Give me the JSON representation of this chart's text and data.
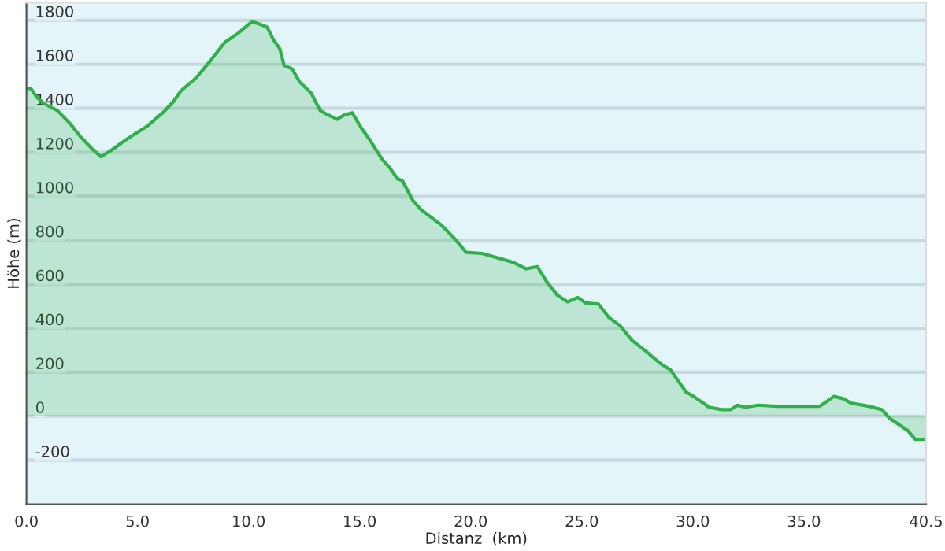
{
  "chart_data": {
    "type": "area",
    "xlabel": "Distanz  (km)",
    "ylabel": "Höhe (m)",
    "xlim": [
      0,
      40.5
    ],
    "ylim": [
      -400,
      1880
    ],
    "xticks": [
      {
        "value": 0,
        "label": "0.0"
      },
      {
        "value": 5,
        "label": "5.0"
      },
      {
        "value": 10,
        "label": "10.0"
      },
      {
        "value": 15,
        "label": "15.0"
      },
      {
        "value": 20,
        "label": "20.0"
      },
      {
        "value": 25,
        "label": "25.0"
      },
      {
        "value": 30,
        "label": "30.0"
      },
      {
        "value": 35,
        "label": "35.0"
      },
      {
        "value": 40.5,
        "label": "40.5"
      }
    ],
    "yticks": [
      -200,
      0,
      200,
      400,
      600,
      800,
      1000,
      1200,
      1400,
      1600,
      1800
    ],
    "grid": "y",
    "legend": false,
    "series": [
      {
        "color": "#2fb04a",
        "x": [
          0,
          0.2,
          0.47,
          0.81,
          1.39,
          1.97,
          2.44,
          3.01,
          3.36,
          3.83,
          4.52,
          5.45,
          6.14,
          6.61,
          6.96,
          7.65,
          8.23,
          8.93,
          9.51,
          10.16,
          10.83,
          11.13,
          11.41,
          11.6,
          11.95,
          12.3,
          12.81,
          13.22,
          13.57,
          13.99,
          14.31,
          14.66,
          15.08,
          15.43,
          16.0,
          16.35,
          16.7,
          16.93,
          17.4,
          17.75,
          18.67,
          19.25,
          19.8,
          20.5,
          21.2,
          21.9,
          22.5,
          23.0,
          23.43,
          23.9,
          24.36,
          24.82,
          25.17,
          25.75,
          26.21,
          26.74,
          27.26,
          27.95,
          28.53,
          29.0,
          29.69,
          30.04,
          30.74,
          31.31,
          31.71,
          32.01,
          32.36,
          32.94,
          33.77,
          35.72,
          36.35,
          36.77,
          37.11,
          37.93,
          38.51,
          38.86,
          39.67,
          40.01,
          40.5
        ],
        "values": [
          1490,
          1490,
          1450,
          1420,
          1390,
          1330,
          1270,
          1210,
          1180,
          1210,
          1260,
          1320,
          1380,
          1430,
          1480,
          1540,
          1610,
          1700,
          1740,
          1795,
          1770,
          1710,
          1670,
          1595,
          1580,
          1520,
          1470,
          1390,
          1370,
          1350,
          1370,
          1380,
          1310,
          1260,
          1170,
          1130,
          1080,
          1070,
          980,
          940,
          870,
          810,
          745,
          740,
          720,
          700,
          670,
          680,
          610,
          550,
          520,
          540,
          515,
          510,
          450,
          410,
          345,
          290,
          240,
          210,
          110,
          90,
          40,
          30,
          30,
          50,
          40,
          50,
          45,
          45,
          90,
          80,
          60,
          45,
          30,
          -10,
          -65,
          -105,
          -105
        ]
      }
    ]
  }
}
